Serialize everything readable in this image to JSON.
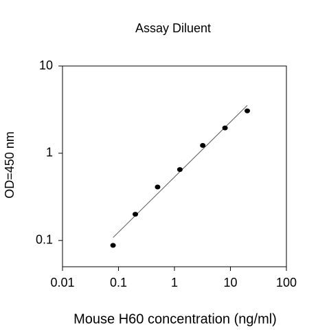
{
  "chart_data": {
    "type": "scatter",
    "title": "Assay Diluent",
    "x_label": "Mouse H60 concentration (ng/ml)",
    "y_label": "OD=450 nm",
    "x": [
      0.08,
      0.2,
      0.5,
      1.25,
      3.2,
      8,
      20
    ],
    "values": [
      0.088,
      0.2,
      0.41,
      0.65,
      1.23,
      1.95,
      3.06
    ],
    "color": "#000000",
    "fit": {
      "x": [
        0.08,
        20
      ],
      "values": [
        0.108,
        3.54
      ],
      "color": "#555555"
    },
    "x_log": true,
    "y_log": true,
    "xlim": [
      0.01,
      100
    ],
    "ylim": [
      0.05,
      10
    ],
    "xticks": [
      0.01,
      0.1,
      1,
      10,
      100
    ],
    "yticks": [
      0.1,
      1,
      10
    ]
  }
}
